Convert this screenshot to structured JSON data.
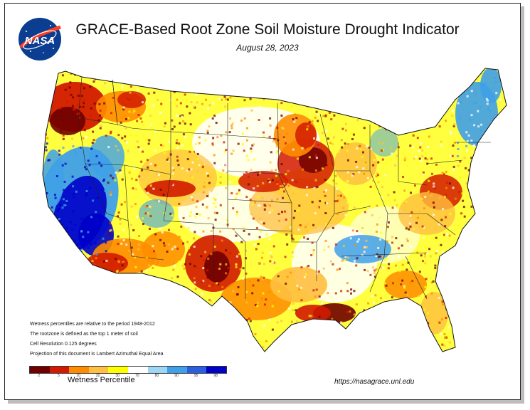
{
  "title": "GRACE-Based Root Zone Soil  Moisture Drought Indicator",
  "date": "August 28, 2023",
  "logo_text": "NASA",
  "notes": [
    "Wetness percentiles are relative to the period 1948-2012",
    "The rootzone is defined as the top 1 meter of soil",
    "Cell Resolution 0.125 degrees",
    "Projection of this document is Lambert Azimuthal Equal Area"
  ],
  "legend": {
    "title": "Wetness Percentile",
    "ticks": [
      "2",
      "5",
      "10",
      "20",
      "30",
      "70",
      "80",
      "90",
      "95",
      "98"
    ],
    "colors": [
      "#700000",
      "#d21a00",
      "#ff8c00",
      "#ffbf40",
      "#ffff00",
      "#ffffff",
      "#9dd7f5",
      "#3fa0e8",
      "#2a5fe0",
      "#0000c8"
    ]
  },
  "url": "https://nasagrace.unl.edu",
  "palette": {
    "exceptional_drought": "#700000",
    "extreme_drought": "#d21a00",
    "severe_drought": "#ff8c00",
    "moderate_drought": "#ffbf40",
    "abnormally_dry": "#ffff00",
    "normal": "#ffffff",
    "wet": "#3fa0e8",
    "very_wet": "#0000c8"
  }
}
